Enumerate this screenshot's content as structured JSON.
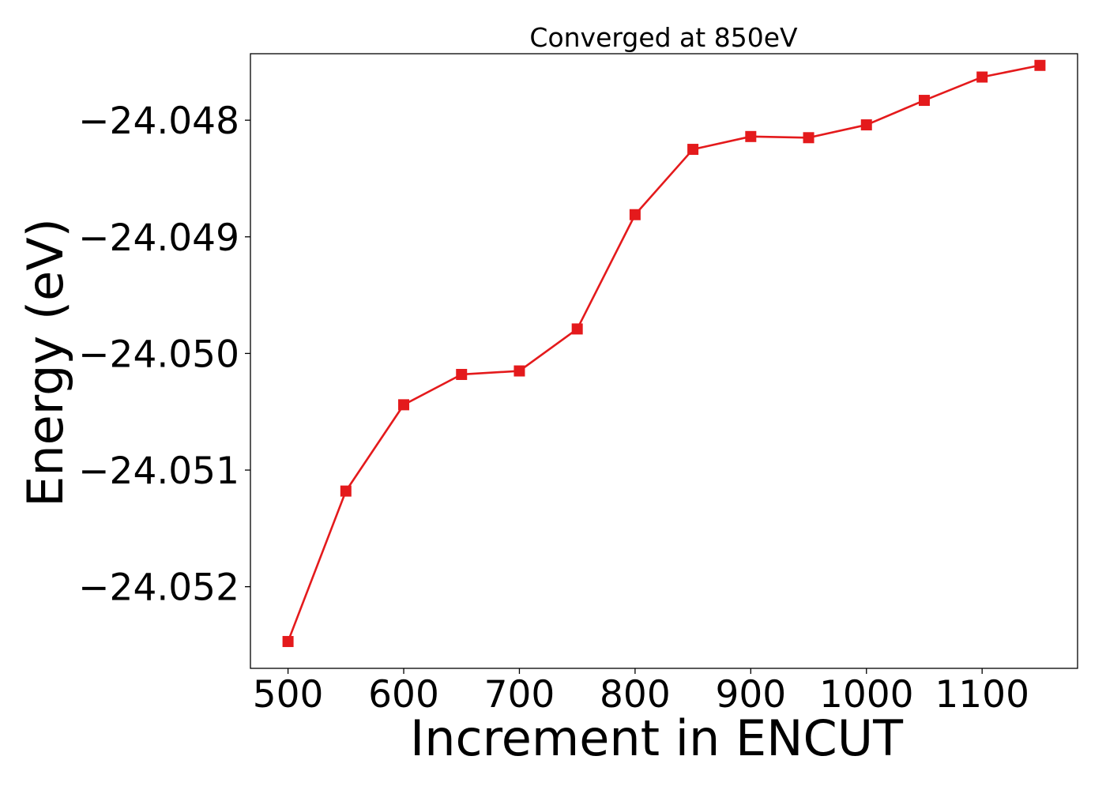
{
  "chart_data": {
    "type": "line",
    "title": "Converged at 850eV",
    "xlabel": "Increment in ENCUT",
    "ylabel": "Energy (eV)",
    "xlim": [
      467.5,
      1182.5
    ],
    "ylim": [
      -24.0527,
      -24.04743
    ],
    "x_ticks": [
      500,
      600,
      700,
      800,
      900,
      1000,
      1100
    ],
    "x_tick_labels": [
      "500",
      "600",
      "700",
      "800",
      "900",
      "1000",
      "1100"
    ],
    "y_ticks": [
      -24.048,
      -24.049,
      -24.05,
      -24.051,
      -24.052
    ],
    "y_tick_labels": [
      "−24.048",
      "−24.049",
      "−24.050",
      "−24.051",
      "−24.052"
    ],
    "grid": false,
    "legend": "none",
    "series": [
      {
        "color": "#e41a1c",
        "marker": "square",
        "x": [
          500,
          550,
          600,
          650,
          700,
          750,
          800,
          850,
          900,
          950,
          1000,
          1050,
          1100,
          1150
        ],
        "y": [
          -24.05247,
          -24.05118,
          -24.05044,
          -24.05018,
          -24.05015,
          -24.04979,
          -24.04881,
          -24.04825,
          -24.04814,
          -24.04815,
          -24.04804,
          -24.04783,
          -24.04763,
          -24.04753
        ]
      }
    ]
  }
}
